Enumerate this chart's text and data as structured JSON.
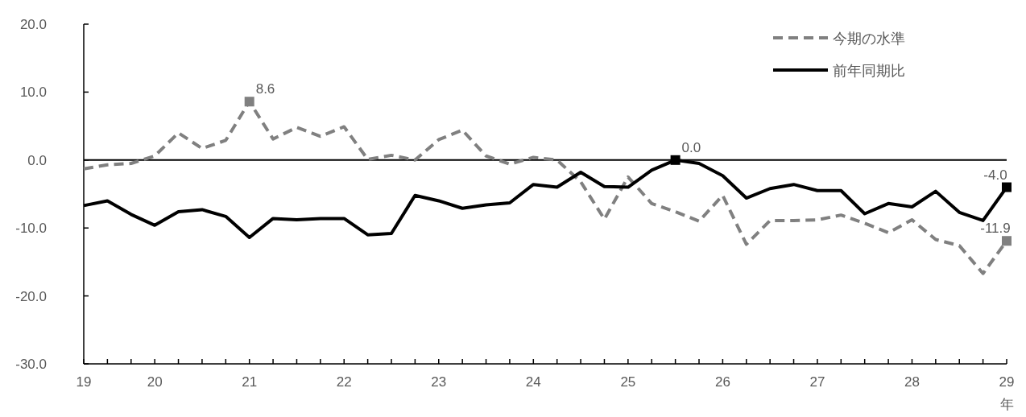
{
  "chart_data": {
    "type": "line",
    "categories": [
      "19",
      null,
      null,
      "20",
      null,
      null,
      null,
      "21",
      null,
      null,
      null,
      "22",
      null,
      null,
      null,
      "23",
      null,
      null,
      null,
      "24",
      null,
      null,
      null,
      "25",
      null,
      null,
      null,
      "26",
      null,
      null,
      null,
      "27",
      null,
      null,
      null,
      "28",
      null,
      null,
      null,
      "29"
    ],
    "xlabel": "年",
    "ylim": [
      -30,
      20
    ],
    "yticks": [
      {
        "value": -30,
        "label": "-30.0"
      },
      {
        "value": -20,
        "label": "-20.0"
      },
      {
        "value": -10,
        "label": "-10.0"
      },
      {
        "value": 0,
        "label": "0.0"
      },
      {
        "value": 10,
        "label": "10.0"
      },
      {
        "value": 20,
        "label": "20.0"
      }
    ],
    "series": [
      {
        "name": "今期の水準",
        "color": "#808080",
        "line_style": "dashed",
        "values": [
          -1.3,
          -0.7,
          -0.5,
          0.6,
          4.0,
          1.7,
          2.9,
          8.6,
          3.1,
          4.8,
          3.5,
          4.9,
          0.1,
          0.7,
          0.0,
          3.0,
          4.4,
          0.6,
          -0.6,
          0.4,
          0.0,
          -3.2,
          -8.7,
          -2.5,
          -6.4,
          -7.6,
          -9.0,
          -5.2,
          -12.4,
          -8.9,
          -8.9,
          -8.8,
          -8.1,
          -9.3,
          -10.7,
          -8.8,
          -11.7,
          -12.6,
          -16.7,
          -11.9
        ],
        "value_labels": [
          null,
          null,
          null,
          null,
          null,
          null,
          null,
          "8.6",
          null,
          null,
          null,
          null,
          null,
          null,
          null,
          null,
          null,
          null,
          null,
          null,
          null,
          null,
          null,
          null,
          null,
          null,
          null,
          null,
          null,
          null,
          null,
          null,
          null,
          null,
          null,
          null,
          null,
          null,
          null,
          "-11.9"
        ]
      },
      {
        "name": "前年同期比",
        "color": "#000000",
        "line_style": "solid",
        "values": [
          -6.7,
          -6.0,
          -8.0,
          -9.6,
          -7.6,
          -7.3,
          -8.3,
          -11.4,
          -8.6,
          -8.8,
          -8.6,
          -8.6,
          -11.0,
          -10.8,
          -5.2,
          -6.0,
          -7.1,
          -6.6,
          -6.3,
          -3.6,
          -4.0,
          -1.8,
          -3.9,
          -4.0,
          -1.5,
          0.0,
          -0.5,
          -2.3,
          -5.6,
          -4.2,
          -3.6,
          -4.5,
          -4.5,
          -7.9,
          -6.4,
          -6.9,
          -4.6,
          -7.7,
          -8.9,
          -4.0
        ],
        "value_labels": [
          null,
          null,
          null,
          null,
          null,
          null,
          null,
          null,
          null,
          null,
          null,
          null,
          null,
          null,
          null,
          null,
          null,
          null,
          null,
          null,
          null,
          null,
          null,
          null,
          null,
          "0.0",
          null,
          null,
          null,
          null,
          null,
          null,
          null,
          null,
          null,
          null,
          null,
          null,
          null,
          "-4.0"
        ]
      }
    ],
    "ref_lines": [
      {
        "axis": "y",
        "value": 0,
        "color": "#000000"
      }
    ],
    "grid": false,
    "legend": "top right"
  }
}
